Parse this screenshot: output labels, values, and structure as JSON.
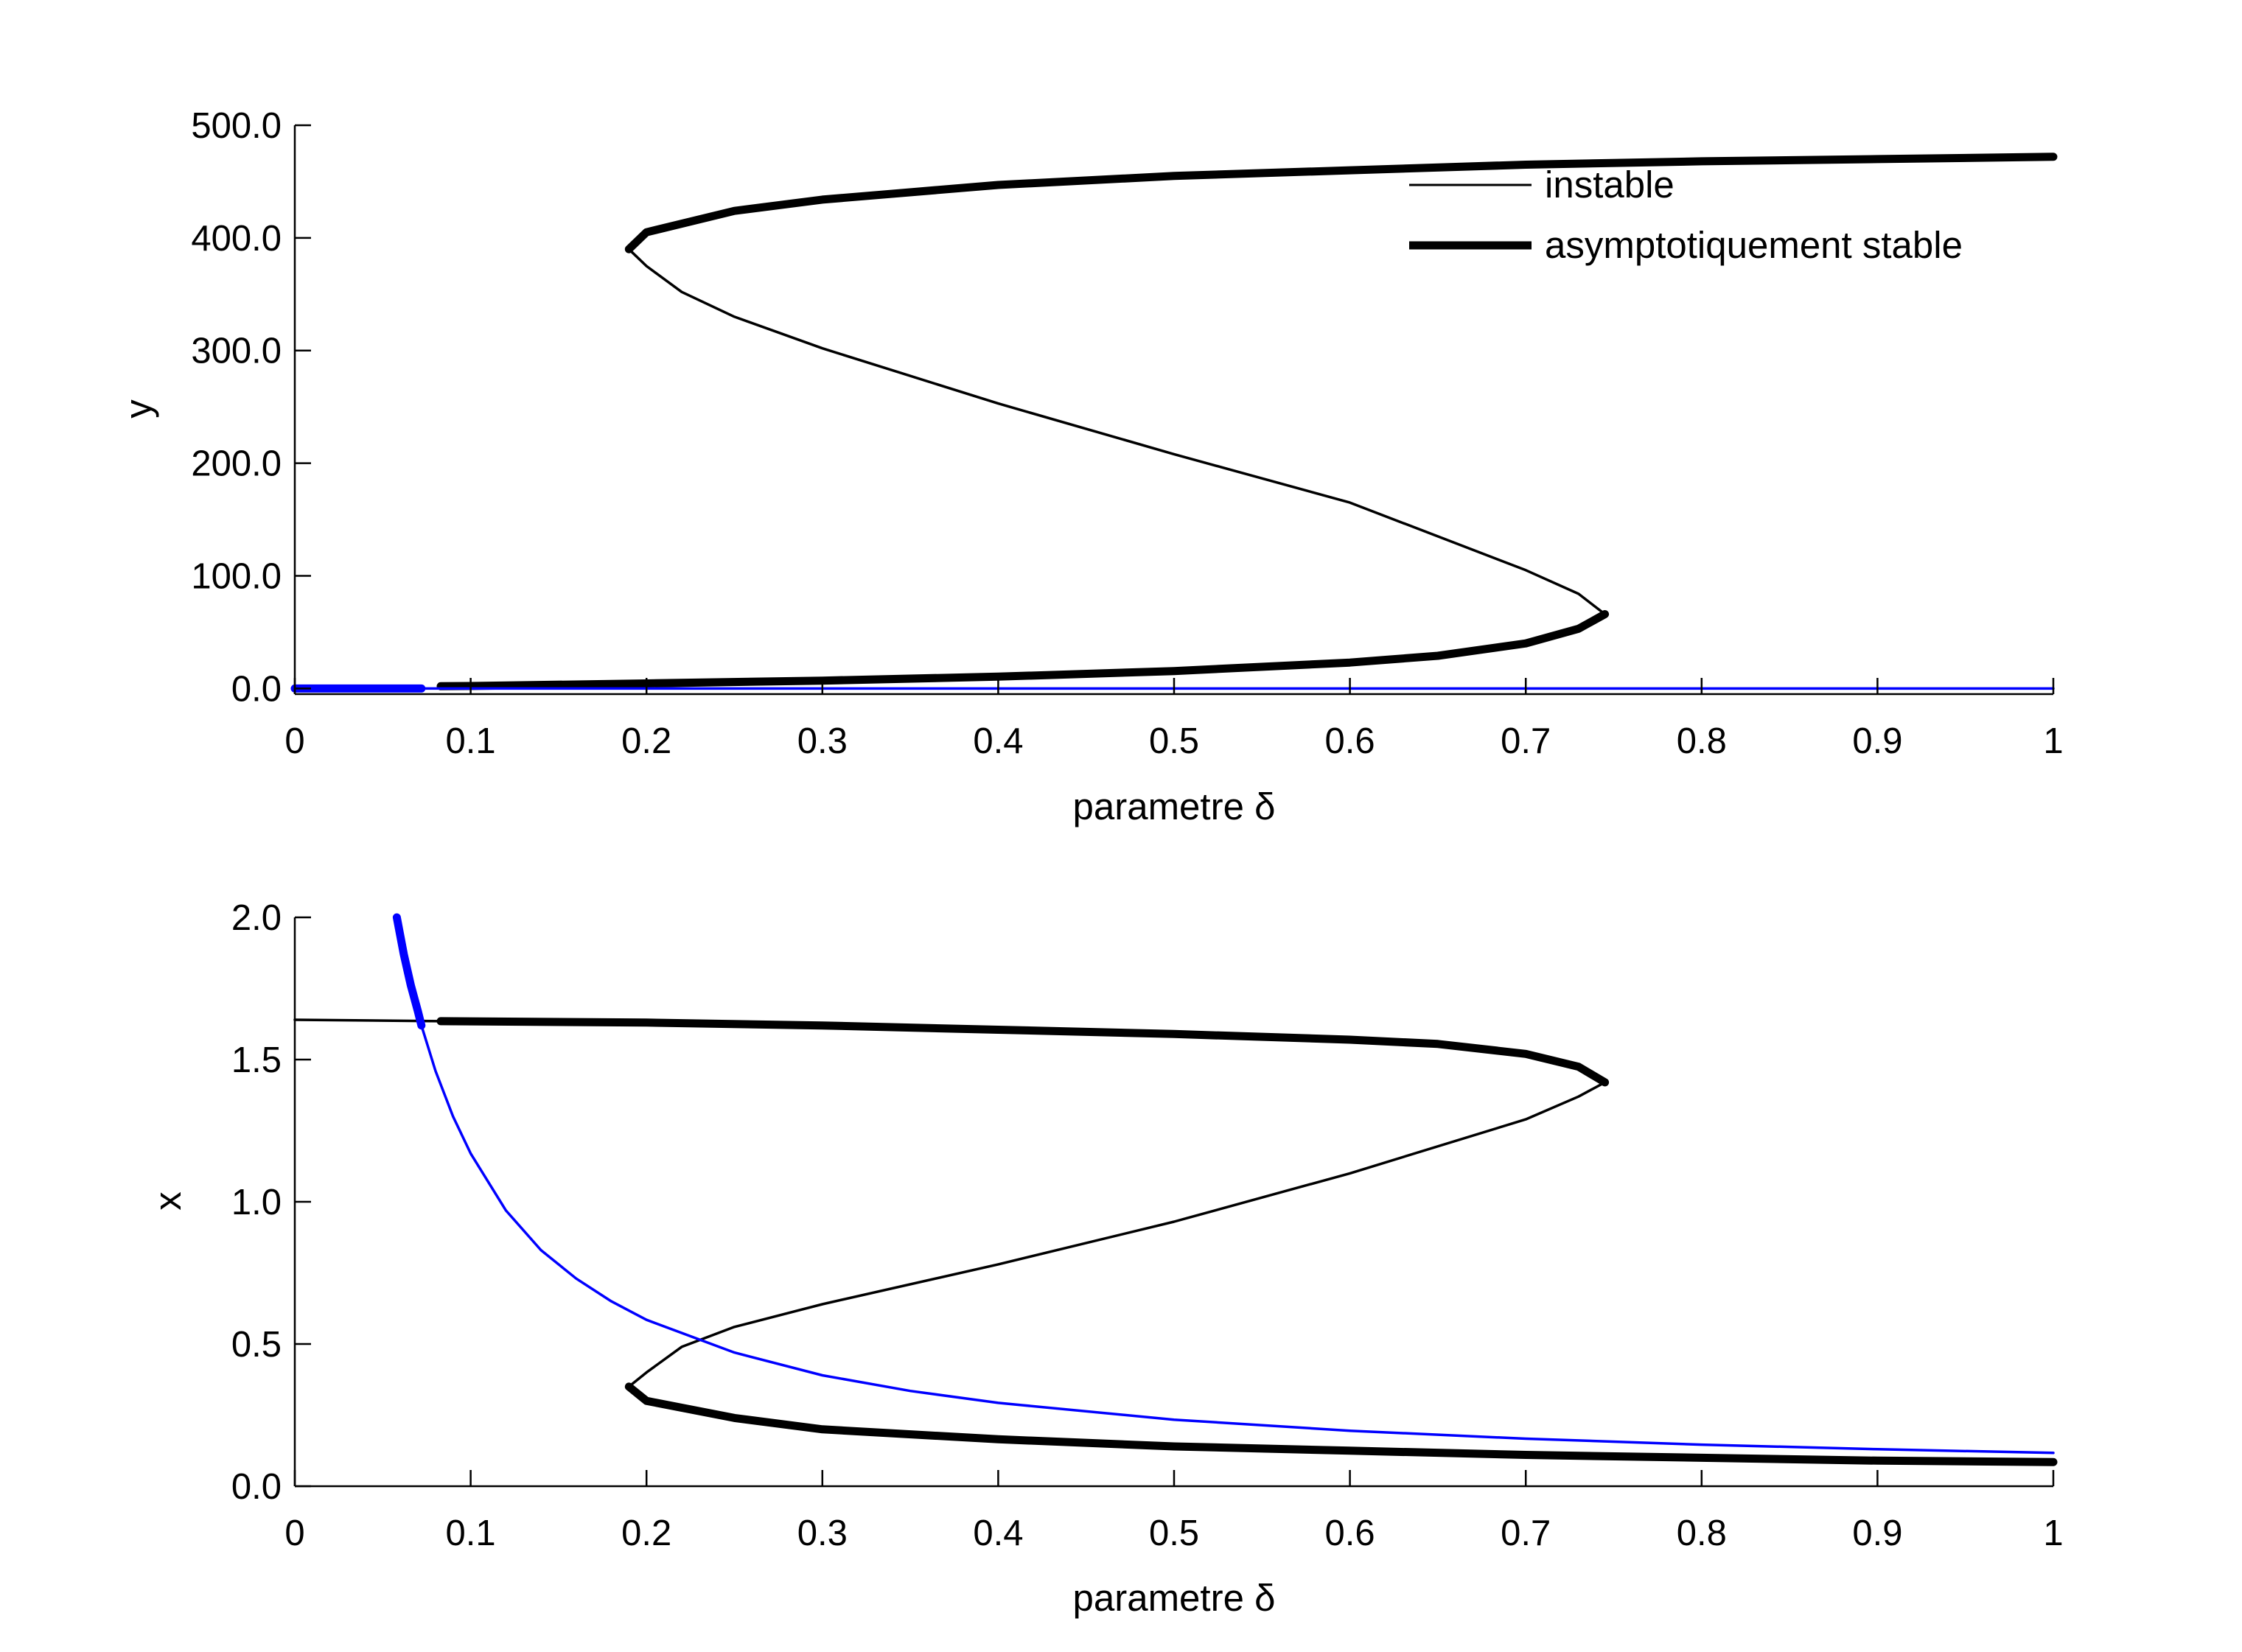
{
  "chart_data": [
    {
      "type": "line",
      "xlabel": "parametre δ",
      "ylabel": "y",
      "xlim": [
        0,
        1
      ],
      "ylim": [
        -5,
        500
      ],
      "xticks": [
        0,
        0.1,
        0.2,
        0.3,
        0.4,
        0.5,
        0.6,
        0.7,
        0.8,
        0.9,
        1
      ],
      "xtick_labels": [
        "0",
        "0.1",
        "0.2",
        "0.3",
        "0.4",
        "0.5",
        "0.6",
        "0.7",
        "0.8",
        "0.9",
        "1"
      ],
      "yticks": [
        0,
        100,
        200,
        300,
        400,
        500
      ],
      "ytick_labels": [
        "0.0",
        "100.0",
        "200.0",
        "300.0",
        "400.0",
        "500.0"
      ],
      "grid": false,
      "legend": {
        "position": "top-right",
        "entries": [
          {
            "label": "instable",
            "style": "thin",
            "color": "#000000"
          },
          {
            "label": "asymptotiquement stable",
            "style": "thick",
            "color": "#000000"
          }
        ]
      },
      "series": [
        {
          "color": "#000000",
          "segments": [
            {
              "style": "thick",
              "points": [
                [
                  0.083,
                  2
                ],
                [
                  0.1,
                  2.2
                ],
                [
                  0.2,
                  4.5
                ],
                [
                  0.3,
                  7
                ],
                [
                  0.4,
                  10.5
                ],
                [
                  0.5,
                  15.5
                ],
                [
                  0.6,
                  23
                ],
                [
                  0.65,
                  29
                ],
                [
                  0.7,
                  40
                ],
                [
                  0.73,
                  53
                ],
                [
                  0.745,
                  66
                ]
              ]
            },
            {
              "style": "thin",
              "points": [
                [
                  0.745,
                  66
                ],
                [
                  0.73,
                  84
                ],
                [
                  0.7,
                  105
                ],
                [
                  0.6,
                  165
                ],
                [
                  0.5,
                  208
                ],
                [
                  0.4,
                  253
                ],
                [
                  0.3,
                  302
                ],
                [
                  0.25,
                  330
                ],
                [
                  0.22,
                  352
                ],
                [
                  0.2,
                  375
                ],
                [
                  0.19,
                  390
                ]
              ]
            },
            {
              "style": "thick",
              "points": [
                [
                  0.19,
                  390
                ],
                [
                  0.2,
                  405
                ],
                [
                  0.25,
                  424
                ],
                [
                  0.3,
                  434
                ],
                [
                  0.4,
                  447
                ],
                [
                  0.5,
                  455
                ],
                [
                  0.6,
                  460
                ],
                [
                  0.7,
                  465
                ],
                [
                  0.8,
                  468
                ],
                [
                  0.9,
                  470
                ],
                [
                  1.0,
                  472
                ]
              ]
            }
          ]
        },
        {
          "color": "#0000ff",
          "segments": [
            {
              "style": "thick",
              "points": [
                [
                  0,
                  0
                ],
                [
                  0.072,
                  0
                ]
              ]
            },
            {
              "style": "thin",
              "points": [
                [
                  0.072,
                  0
                ],
                [
                  1.0,
                  0
                ]
              ]
            }
          ]
        }
      ]
    },
    {
      "type": "line",
      "xlabel": "parametre δ",
      "ylabel": "x",
      "xlim": [
        0,
        1
      ],
      "ylim": [
        0,
        2
      ],
      "xticks": [
        0,
        0.1,
        0.2,
        0.3,
        0.4,
        0.5,
        0.6,
        0.7,
        0.8,
        0.9,
        1
      ],
      "xtick_labels": [
        "0",
        "0.1",
        "0.2",
        "0.3",
        "0.4",
        "0.5",
        "0.6",
        "0.7",
        "0.8",
        "0.9",
        "1"
      ],
      "yticks": [
        0,
        0.5,
        1,
        1.5,
        2
      ],
      "ytick_labels": [
        "0.0",
        "0.5",
        "1.0",
        "1.5",
        "2.0"
      ],
      "grid": false,
      "series": [
        {
          "color": "#000000",
          "segments": [
            {
              "style": "thin",
              "points": [
                [
                  0,
                  1.64
                ],
                [
                  0.083,
                  1.635
                ]
              ]
            },
            {
              "style": "thick",
              "points": [
                [
                  0.083,
                  1.635
                ],
                [
                  0.2,
                  1.63
                ],
                [
                  0.3,
                  1.62
                ],
                [
                  0.4,
                  1.605
                ],
                [
                  0.5,
                  1.59
                ],
                [
                  0.6,
                  1.57
                ],
                [
                  0.65,
                  1.555
                ],
                [
                  0.7,
                  1.52
                ],
                [
                  0.73,
                  1.475
                ],
                [
                  0.745,
                  1.42
                ]
              ]
            },
            {
              "style": "thin",
              "points": [
                [
                  0.745,
                  1.42
                ],
                [
                  0.73,
                  1.37
                ],
                [
                  0.7,
                  1.29
                ],
                [
                  0.6,
                  1.1
                ],
                [
                  0.5,
                  0.93
                ],
                [
                  0.4,
                  0.78
                ],
                [
                  0.3,
                  0.64
                ],
                [
                  0.25,
                  0.56
                ],
                [
                  0.22,
                  0.49
                ],
                [
                  0.2,
                  0.4
                ],
                [
                  0.19,
                  0.35
                ]
              ]
            },
            {
              "style": "thick",
              "points": [
                [
                  0.19,
                  0.35
                ],
                [
                  0.2,
                  0.3
                ],
                [
                  0.25,
                  0.24
                ],
                [
                  0.3,
                  0.2
                ],
                [
                  0.4,
                  0.165
                ],
                [
                  0.5,
                  0.14
                ],
                [
                  0.6,
                  0.125
                ],
                [
                  0.7,
                  0.11
                ],
                [
                  0.8,
                  0.1
                ],
                [
                  0.9,
                  0.09
                ],
                [
                  1.0,
                  0.085
                ]
              ]
            }
          ]
        },
        {
          "color": "#0000ff",
          "segments": [
            {
              "style": "thick",
              "points": [
                [
                  0.058,
                  2.0
                ],
                [
                  0.062,
                  1.87
                ],
                [
                  0.066,
                  1.76
                ],
                [
                  0.07,
                  1.67
                ],
                [
                  0.072,
                  1.62
                ]
              ]
            },
            {
              "style": "thin",
              "points": [
                [
                  0.072,
                  1.62
                ],
                [
                  0.08,
                  1.46
                ],
                [
                  0.09,
                  1.3
                ],
                [
                  0.1,
                  1.17
                ],
                [
                  0.12,
                  0.97
                ],
                [
                  0.14,
                  0.83
                ],
                [
                  0.16,
                  0.73
                ],
                [
                  0.18,
                  0.65
                ],
                [
                  0.2,
                  0.585
                ],
                [
                  0.25,
                  0.47
                ],
                [
                  0.3,
                  0.39
                ],
                [
                  0.35,
                  0.335
                ],
                [
                  0.4,
                  0.293
                ],
                [
                  0.5,
                  0.234
                ],
                [
                  0.6,
                  0.195
                ],
                [
                  0.7,
                  0.167
                ],
                [
                  0.8,
                  0.146
                ],
                [
                  0.9,
                  0.13
                ],
                [
                  1.0,
                  0.117
                ]
              ]
            }
          ]
        }
      ]
    }
  ]
}
